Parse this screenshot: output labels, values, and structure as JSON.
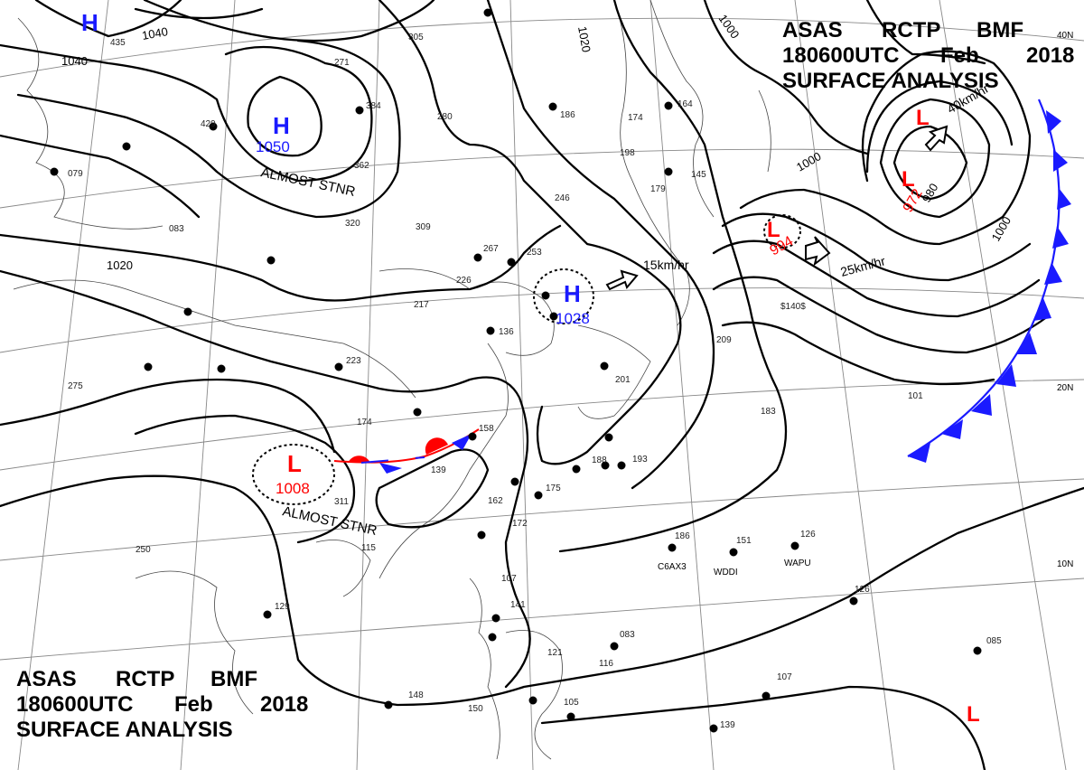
{
  "header": {
    "agency_line": [
      "ASAS",
      "RCTP",
      "BMF"
    ],
    "time_line": [
      "180600UTC",
      "Feb",
      "2018"
    ],
    "product": "SURFACE ANALYSIS"
  },
  "lat_labels": [
    "40N",
    "20N",
    "10N"
  ],
  "pressure_centers": [
    {
      "type": "H",
      "value": "1050",
      "note": "ALMOST STNR"
    },
    {
      "type": "H",
      "value": "1028",
      "note": "15km/hr"
    },
    {
      "type": "L",
      "value": "1008",
      "note": "ALMOST STNR"
    },
    {
      "type": "L",
      "value": "994",
      "note": "25km/hr"
    },
    {
      "type": "L",
      "value": "972",
      "note": "40km/hr"
    },
    {
      "type": "L",
      "value": "",
      "note": ""
    },
    {
      "type": "L",
      "value": "",
      "note": ""
    },
    {
      "type": "H",
      "value": "",
      "note": ""
    }
  ],
  "isobar_labels": [
    "1040",
    "1040",
    "1020",
    "1020",
    "1000",
    "1000",
    "1000",
    "980"
  ],
  "ship_calls": [
    "C6AX3",
    "WDDI",
    "WAPU"
  ],
  "station_labels": [
    "435",
    "305",
    "271",
    "384",
    "429",
    "280",
    "362",
    "320",
    "309",
    "186",
    "174",
    "198",
    "164",
    "145",
    "179",
    "246",
    "267",
    "253",
    "226",
    "217",
    "223",
    "174",
    "158",
    "139",
    "162",
    "172",
    "175",
    "188",
    "193",
    "201",
    "209",
    "183",
    "186",
    "151",
    "126",
    "126",
    "107",
    "141",
    "121",
    "083",
    "105",
    "139",
    "107",
    "085",
    "083",
    "079",
    "275",
    "250",
    "129",
    "115",
    "311",
    "148",
    "150",
    "116",
    "101",
    "$140$",
    "136",
    "099",
    "238"
  ],
  "colors": {
    "high": "#1a1aff",
    "low": "#ff0000",
    "isobar": "#000000",
    "coast": "#333333",
    "grid": "#777777"
  }
}
